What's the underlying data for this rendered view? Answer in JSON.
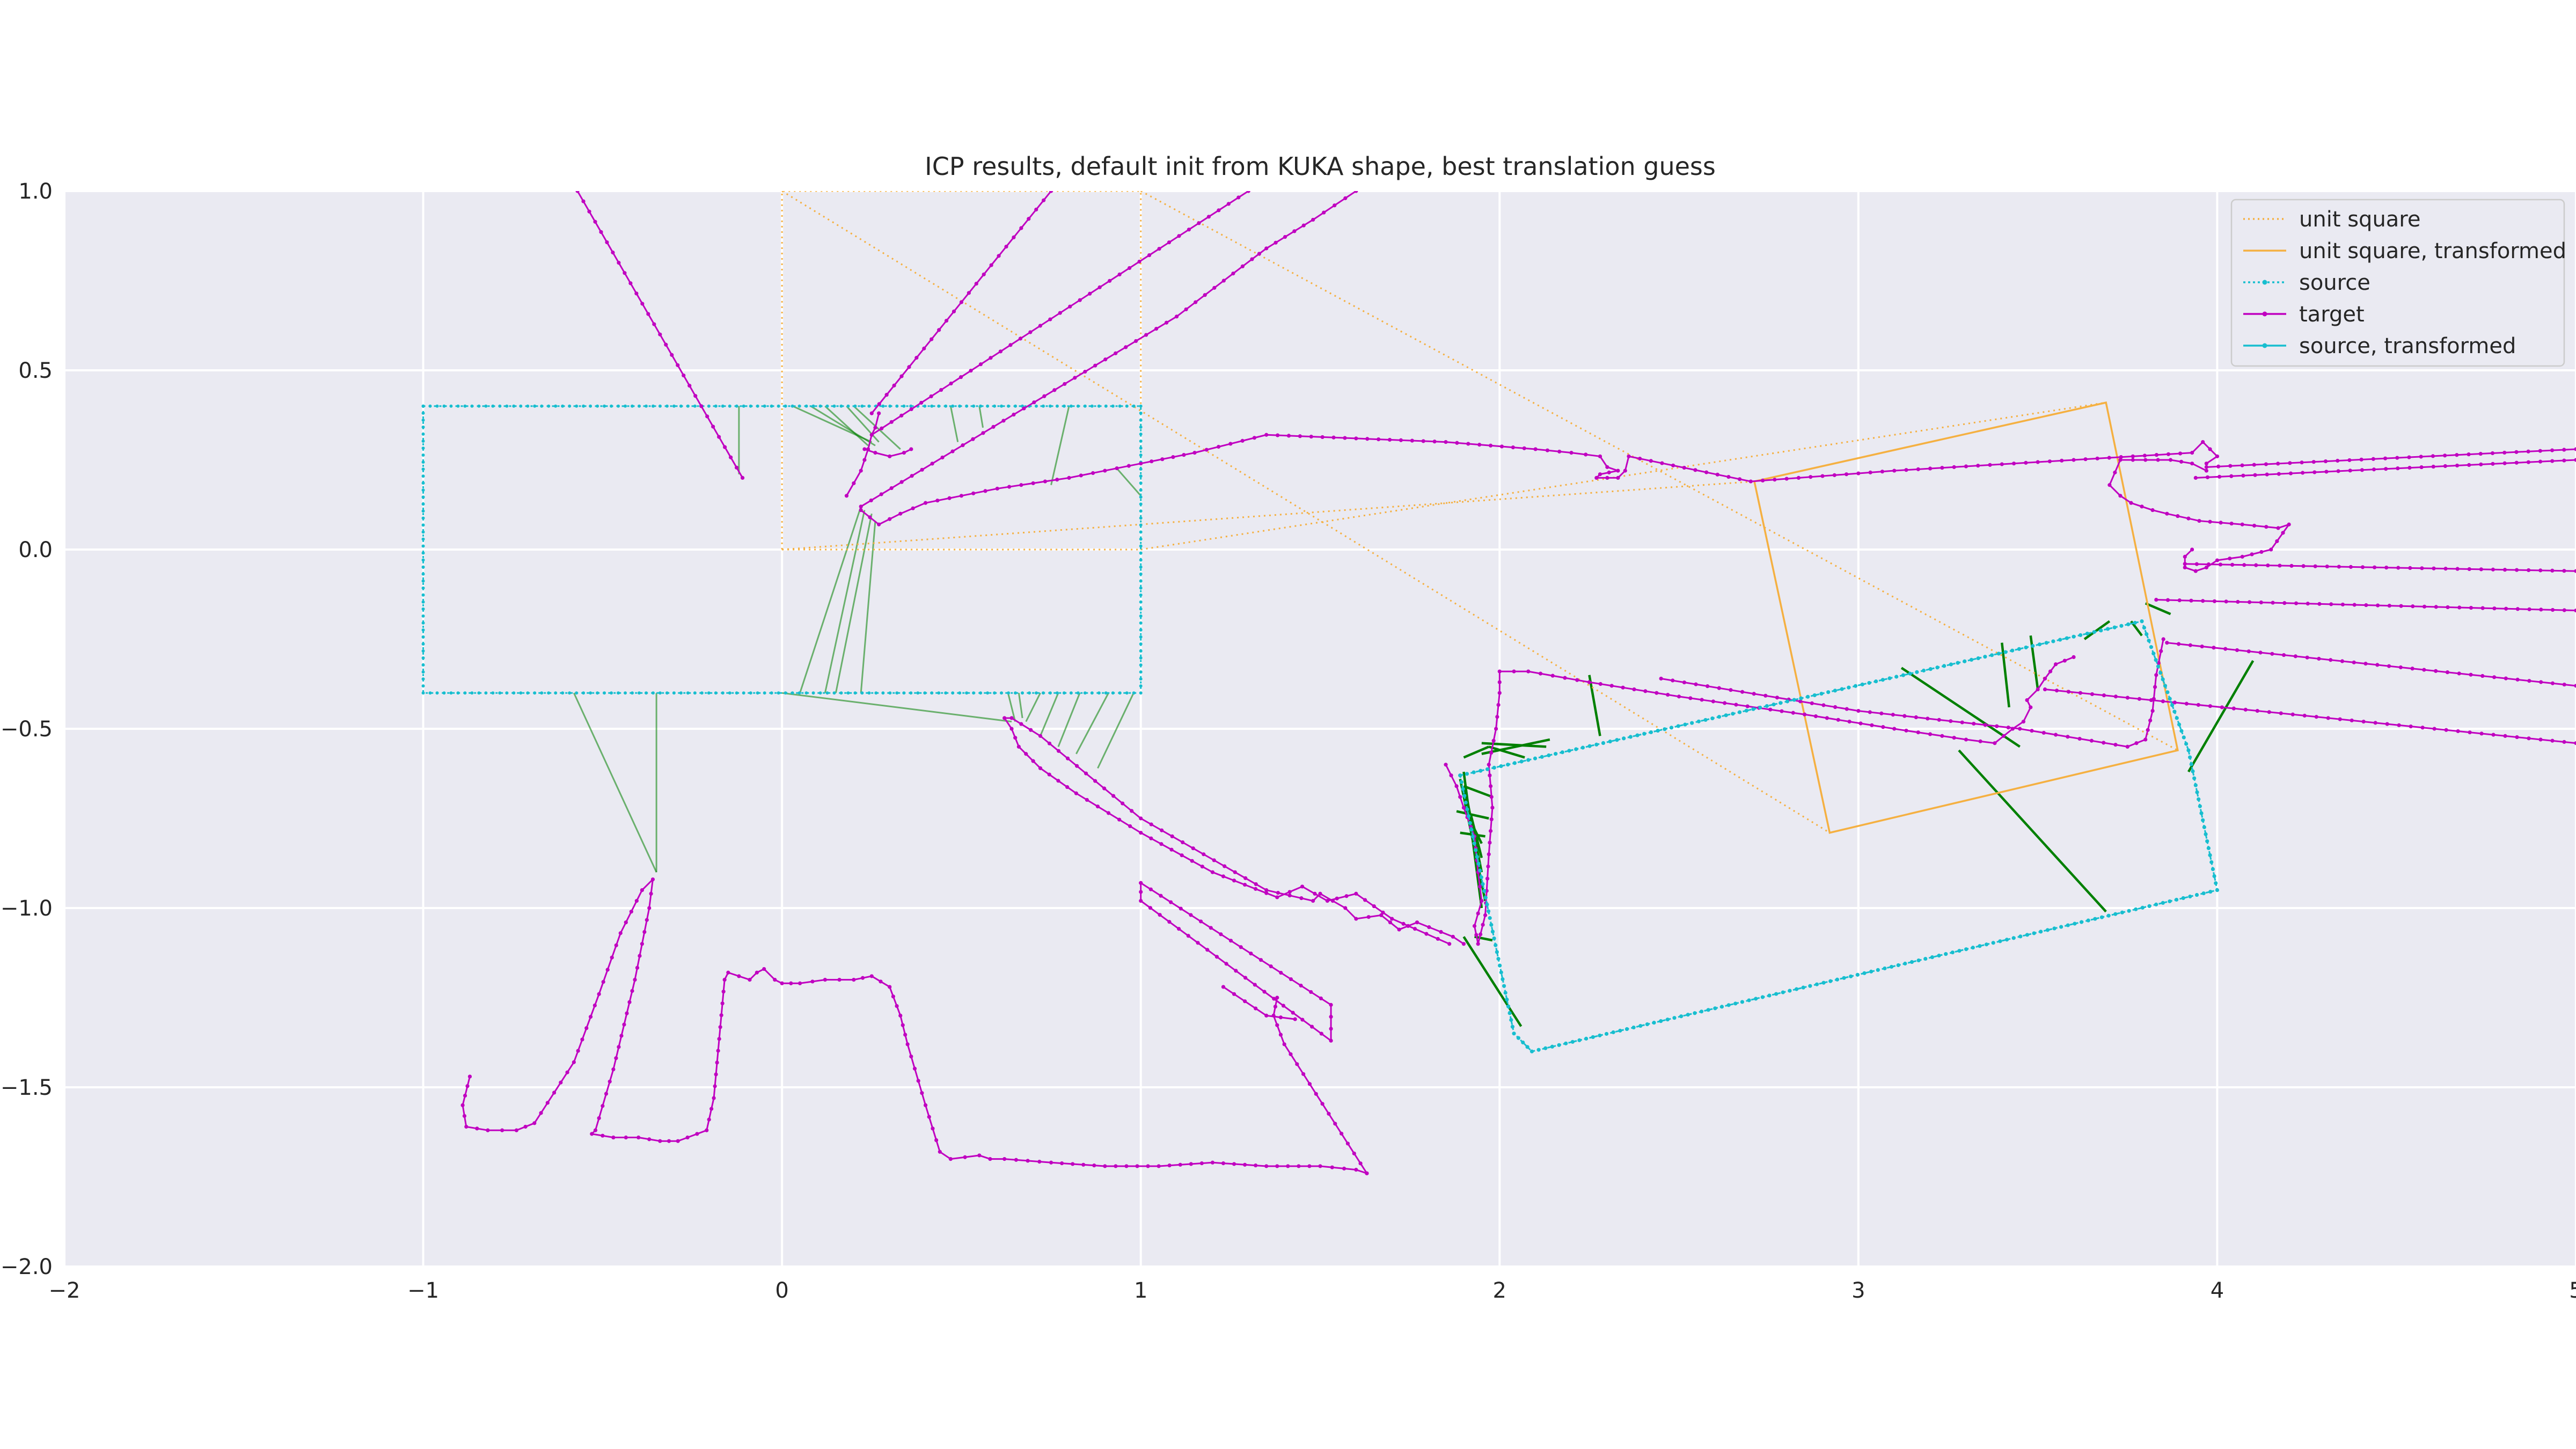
{
  "chart_data": {
    "type": "line",
    "title": "ICP results, default init from KUKA shape, best translation guess",
    "xlabel": "",
    "ylabel": "",
    "xlim": [
      -2,
      5
    ],
    "ylim": [
      -2,
      1
    ],
    "xticks": [
      -2,
      -1,
      0,
      1,
      2,
      3,
      4,
      5
    ],
    "yticks": [
      1.0,
      0.5,
      0.0,
      -0.5,
      -1.0,
      -1.5,
      -2.0
    ],
    "xtick_labels": [
      "−2",
      "−1",
      "0",
      "1",
      "2",
      "3",
      "4",
      "5"
    ],
    "ytick_labels": [
      "1.0",
      "0.5",
      "0.0",
      "−0.5",
      "−1.0",
      "−1.5",
      "−2.0"
    ],
    "grid": true,
    "legend_position": "top-right",
    "colors": {
      "background": "#eaeaf2",
      "grid": "#ffffff",
      "unit_square": "#f5b041",
      "source": "#17becf",
      "target": "#c000c0",
      "correspondence": "#008000"
    },
    "series": [
      {
        "name": "unit square",
        "style": "dotted",
        "x": [
          0,
          1,
          1,
          0,
          0
        ],
        "y": [
          0,
          0,
          1,
          1,
          0
        ]
      },
      {
        "name": "unit square, transformed",
        "style": "solid",
        "x": [
          2.71,
          3.69,
          3.89,
          2.92,
          2.71
        ],
        "y": [
          0.19,
          0.41,
          -0.56,
          -0.79,
          0.19
        ]
      },
      {
        "name": "source",
        "style": "dotted-markers",
        "x": [
          -1,
          1,
          1,
          -1,
          -1
        ],
        "y": [
          0.4,
          0.4,
          -0.4,
          -0.4,
          0.4
        ]
      },
      {
        "name": "target",
        "style": "solid-markers",
        "segments": [
          {
            "x": [
              -0.57,
              -0.11
            ],
            "y": [
              1.0,
              0.2
            ]
          },
          {
            "x": [
              -0.87,
              -0.89,
              -0.88,
              -0.82,
              -0.74,
              -0.69,
              -0.58,
              -0.51,
              -0.45,
              -0.39,
              -0.36,
              -0.37,
              -0.41,
              -0.47,
              -0.52,
              -0.53,
              -0.47,
              -0.4,
              -0.34,
              -0.29,
              -0.21,
              -0.19,
              -0.16,
              -0.15,
              -0.12,
              -0.09,
              -0.07,
              -0.05,
              -0.02,
              0.0,
              0.05,
              0.12,
              0.2,
              0.25,
              0.3,
              0.33,
              0.35,
              0.4,
              0.44,
              0.47,
              0.55,
              0.58,
              0.62,
              0.75,
              0.9,
              1.05,
              1.2,
              1.35,
              1.5,
              1.6,
              1.63
            ],
            "y": [
              -1.47,
              -1.55,
              -1.61,
              -1.62,
              -1.62,
              -1.6,
              -1.43,
              -1.24,
              -1.07,
              -0.95,
              -0.92,
              -1.0,
              -1.2,
              -1.45,
              -1.62,
              -1.63,
              -1.64,
              -1.64,
              -1.65,
              -1.65,
              -1.62,
              -1.53,
              -1.2,
              -1.18,
              -1.19,
              -1.2,
              -1.18,
              -1.17,
              -1.2,
              -1.21,
              -1.21,
              -1.2,
              -1.2,
              -1.19,
              -1.22,
              -1.3,
              -1.38,
              -1.55,
              -1.68,
              -1.7,
              -1.69,
              -1.7,
              -1.7,
              -1.71,
              -1.72,
              -1.72,
              -1.71,
              -1.72,
              -1.72,
              -1.73,
              -1.74
            ]
          },
          {
            "x": [
              1.63,
              1.4,
              1.37,
              1.38
            ],
            "y": [
              -1.74,
              -1.38,
              -1.3,
              -1.25
            ]
          },
          {
            "x": [
              1.0,
              1.53,
              1.53,
              1.0,
              1.0
            ],
            "y": [
              -0.93,
              -1.27,
              -1.37,
              -0.98,
              -0.93
            ]
          },
          {
            "x": [
              1.23,
              1.35,
              1.43
            ],
            "y": [
              -1.22,
              -1.3,
              -1.31
            ]
          },
          {
            "x": [
              1.86,
              1.7,
              1.6,
              1.52,
              1.45,
              1.38,
              1.2,
              1.0,
              0.82,
              0.72,
              0.66,
              0.64,
              0.62,
              0.64,
              0.72,
              1.0,
              1.35,
              1.48,
              1.5,
              1.57,
              1.6,
              1.67,
              1.72,
              1.77,
              1.87,
              1.9
            ],
            "y": [
              -1.1,
              -1.03,
              -0.96,
              -0.98,
              -0.94,
              -0.97,
              -0.9,
              -0.79,
              -0.68,
              -0.61,
              -0.55,
              -0.5,
              -0.47,
              -0.47,
              -0.52,
              -0.75,
              -0.95,
              -0.98,
              -0.96,
              -1.0,
              -1.03,
              -1.02,
              -1.06,
              -1.04,
              -1.08,
              -1.1
            ]
          },
          {
            "x": [
              1.85,
              1.88,
              1.9,
              1.93,
              1.94,
              1.95,
              1.93,
              1.94,
              1.96,
              1.97,
              1.98,
              1.97,
              1.99,
              2.0,
              2.0,
              2.08,
              2.25,
              2.5,
              2.85,
              3.1,
              3.3,
              3.38,
              3.43,
              3.46,
              3.48,
              3.47,
              3.5,
              3.52,
              3.55,
              3.6
            ],
            "y": [
              -0.6,
              -0.66,
              -0.72,
              -0.8,
              -0.9,
              -0.98,
              -1.05,
              -1.1,
              -1.02,
              -0.85,
              -0.72,
              -0.6,
              -0.5,
              -0.4,
              -0.34,
              -0.34,
              -0.37,
              -0.41,
              -0.46,
              -0.5,
              -0.53,
              -0.54,
              -0.5,
              -0.48,
              -0.44,
              -0.42,
              -0.39,
              -0.36,
              -0.32,
              -0.3
            ]
          },
          {
            "x": [
              2.45,
              3.0,
              3.45,
              3.75,
              3.8,
              3.82,
              3.83,
              3.85
            ],
            "y": [
              -0.36,
              -0.45,
              -0.5,
              -0.55,
              -0.53,
              -0.45,
              -0.35,
              -0.25
            ]
          },
          {
            "x": [
              0.22,
              0.27,
              0.33,
              0.4,
              0.6,
              0.8,
              1.0,
              1.15,
              1.35,
              1.6,
              1.85,
              2.1,
              2.2,
              2.28,
              2.3,
              2.33,
              2.28,
              2.27,
              2.33,
              2.35,
              2.36,
              2.7,
              3.1,
              3.6,
              3.93,
              3.96,
              4.0,
              3.97,
              3.97,
              3.93,
              3.87,
              3.73,
              3.7,
              3.73,
              3.76,
              3.82,
              3.86,
              3.95,
              4.07,
              4.17,
              4.2,
              4.15,
              4.07,
              4.0,
              3.97,
              3.94,
              3.91,
              3.91,
              3.93
            ],
            "y": [
              0.11,
              0.07,
              0.1,
              0.13,
              0.17,
              0.2,
              0.24,
              0.27,
              0.32,
              0.31,
              0.3,
              0.28,
              0.27,
              0.26,
              0.23,
              0.22,
              0.21,
              0.2,
              0.2,
              0.22,
              0.26,
              0.19,
              0.22,
              0.25,
              0.27,
              0.3,
              0.26,
              0.24,
              0.22,
              0.24,
              0.25,
              0.25,
              0.18,
              0.15,
              0.13,
              0.11,
              0.1,
              0.08,
              0.07,
              0.06,
              0.07,
              0.0,
              -0.02,
              -0.03,
              -0.05,
              -0.06,
              -0.05,
              -0.02,
              0.0
            ]
          },
          {
            "x": [
              0.18,
              0.22,
              0.24,
              0.25,
              0.26,
              0.27
            ],
            "y": [
              0.15,
              0.22,
              0.28,
              0.32,
              0.34,
              0.38
            ]
          },
          {
            "x": [
              0.23,
              0.26,
              0.3,
              0.34,
              0.36
            ],
            "y": [
              0.28,
              0.27,
              0.26,
              0.27,
              0.28
            ]
          },
          {
            "x": [
              0.25,
              0.75
            ],
            "y": [
              0.38,
              1.0
            ]
          },
          {
            "x": [
              0.25,
              1.3
            ],
            "y": [
              0.32,
              1.0
            ]
          },
          {
            "x": [
              0.22,
              1.1,
              1.31,
              1.35,
              1.48,
              1.6
            ],
            "y": [
              0.12,
              0.65,
              0.81,
              0.84,
              0.92,
              1.0
            ]
          },
          {
            "x": [
              3.91,
              5.0
            ],
            "y": [
              -0.04,
              -0.06
            ]
          },
          {
            "x": [
              3.83,
              5.0
            ],
            "y": [
              -0.14,
              -0.17
            ]
          },
          {
            "x": [
              3.86,
              5.0
            ],
            "y": [
              -0.26,
              -0.38
            ]
          },
          {
            "x": [
              3.52,
              5.0
            ],
            "y": [
              -0.39,
              -0.54
            ]
          },
          {
            "x": [
              3.97,
              5.0
            ],
            "y": [
              0.23,
              0.28
            ]
          },
          {
            "x": [
              3.94,
              5.0
            ],
            "y": [
              0.2,
              0.25
            ]
          }
        ]
      },
      {
        "name": "source, transformed",
        "style": "dotted-markers",
        "x": [
          1.89,
          3.79,
          3.92,
          4.0,
          2.09,
          2.04,
          1.89
        ],
        "y": [
          -0.63,
          -0.2,
          -0.56,
          -0.95,
          -1.4,
          -1.35,
          -0.63
        ]
      }
    ],
    "correspondences_original": [
      [
        -0.12,
        0.4,
        -0.12,
        0.21
      ],
      [
        0.03,
        0.4,
        0.25,
        0.3
      ],
      [
        0.08,
        0.4,
        0.26,
        0.29
      ],
      [
        0.12,
        0.4,
        0.24,
        0.29
      ],
      [
        0.18,
        0.4,
        0.27,
        0.3
      ],
      [
        0.2,
        0.4,
        0.33,
        0.28
      ],
      [
        0.47,
        0.4,
        0.49,
        0.3
      ],
      [
        0.55,
        0.4,
        0.56,
        0.34
      ],
      [
        0.8,
        0.4,
        0.75,
        0.18
      ],
      [
        0.93,
        0.23,
        1.0,
        0.15
      ],
      [
        0.05,
        -0.4,
        0.22,
        0.12
      ],
      [
        0.12,
        -0.4,
        0.23,
        0.11
      ],
      [
        0.15,
        -0.4,
        0.25,
        0.1
      ],
      [
        0.22,
        -0.4,
        0.26,
        0.08
      ],
      [
        -0.58,
        -0.4,
        -0.35,
        -0.9
      ],
      [
        -0.35,
        -0.4,
        -0.35,
        -0.9
      ],
      [
        0.0,
        -0.4,
        0.64,
        -0.48
      ],
      [
        0.63,
        -0.4,
        0.65,
        -0.48
      ],
      [
        0.66,
        -0.4,
        0.67,
        -0.47
      ],
      [
        0.72,
        -0.4,
        0.68,
        -0.48
      ],
      [
        0.77,
        -0.4,
        0.72,
        -0.52
      ],
      [
        0.83,
        -0.4,
        0.77,
        -0.55
      ],
      [
        0.91,
        -0.4,
        0.82,
        -0.57
      ],
      [
        0.98,
        -0.4,
        0.88,
        -0.61
      ]
    ],
    "correspondences_transformed": [
      [
        2.25,
        -0.35,
        2.28,
        -0.52
      ],
      [
        3.12,
        -0.33,
        3.45,
        -0.55
      ],
      [
        3.4,
        -0.26,
        3.42,
        -0.44
      ],
      [
        3.48,
        -0.24,
        3.5,
        -0.39
      ],
      [
        3.7,
        -0.2,
        3.63,
        -0.25
      ],
      [
        3.76,
        -0.2,
        3.79,
        -0.24
      ],
      [
        3.87,
        -0.18,
        3.8,
        -0.15
      ],
      [
        4.1,
        -0.31,
        3.92,
        -0.62
      ],
      [
        3.69,
        -1.01,
        3.28,
        -0.56
      ],
      [
        2.06,
        -1.33,
        1.9,
        -1.08
      ],
      [
        1.93,
        -1.08,
        1.98,
        -1.09
      ],
      [
        1.9,
        -0.62,
        1.95,
        -1.0
      ],
      [
        1.89,
        -0.64,
        1.96,
        -0.98
      ],
      [
        1.9,
        -0.67,
        1.95,
        -0.94
      ],
      [
        1.91,
        -0.7,
        1.95,
        -0.9
      ],
      [
        1.92,
        -0.74,
        1.95,
        -0.86
      ],
      [
        1.93,
        -0.78,
        1.95,
        -0.82
      ],
      [
        1.9,
        -0.58,
        1.97,
        -0.55
      ],
      [
        1.95,
        -0.57,
        2.14,
        -0.53
      ],
      [
        1.95,
        -0.54,
        2.13,
        -0.55
      ],
      [
        1.97,
        -0.55,
        2.07,
        -0.58
      ],
      [
        1.9,
        -0.66,
        1.98,
        -0.69
      ],
      [
        1.88,
        -0.73,
        1.97,
        -0.75
      ],
      [
        1.89,
        -0.79,
        1.96,
        -0.8
      ]
    ]
  }
}
